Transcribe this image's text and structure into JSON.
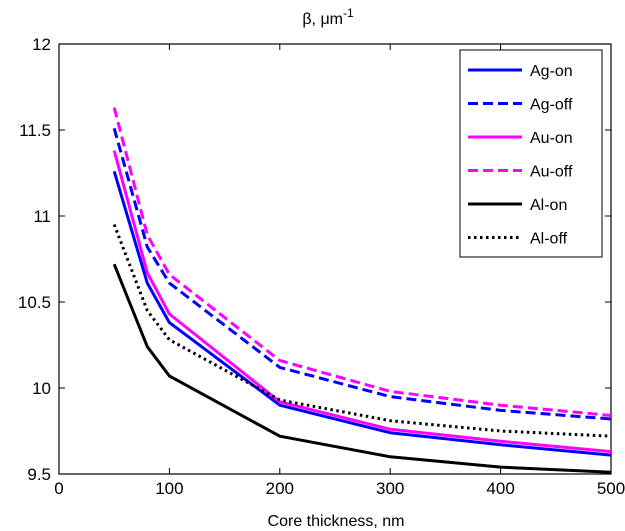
{
  "chart_data": {
    "type": "line",
    "title": "β, μm",
    "title_superscript": "-1",
    "xlabel": "Core thickness, nm",
    "ylabel": "",
    "xlim": [
      0,
      500
    ],
    "ylim": [
      9.5,
      12
    ],
    "xticks": [
      0,
      100,
      200,
      300,
      400,
      500
    ],
    "yticks": [
      9.5,
      10,
      10.5,
      11,
      11.5,
      12
    ],
    "xtick_labels": [
      "0",
      "100",
      "200",
      "300",
      "400",
      "500"
    ],
    "ytick_labels": [
      "9.5",
      "10",
      "10.5",
      "11",
      "11.5",
      "12"
    ],
    "grid": false,
    "legend_position": "top-right",
    "x": [
      50,
      80,
      100,
      200,
      300,
      400,
      500
    ],
    "series": [
      {
        "name": "Ag-on",
        "color": "#0000ff",
        "dash": "solid",
        "values": [
          11.26,
          10.61,
          10.38,
          9.9,
          9.74,
          9.67,
          9.61
        ]
      },
      {
        "name": "Ag-off",
        "color": "#0000ff",
        "dash": "dashed",
        "values": [
          11.51,
          10.82,
          10.61,
          10.12,
          9.95,
          9.87,
          9.82
        ]
      },
      {
        "name": "Au-on",
        "color": "#ff00ff",
        "dash": "solid",
        "values": [
          11.38,
          10.67,
          10.43,
          9.92,
          9.76,
          9.69,
          9.63
        ]
      },
      {
        "name": "Au-off",
        "color": "#ff00ff",
        "dash": "dashed",
        "values": [
          11.63,
          10.89,
          10.66,
          10.16,
          9.98,
          9.9,
          9.84
        ]
      },
      {
        "name": "Al-on",
        "color": "#000000",
        "dash": "solid",
        "values": [
          10.72,
          10.24,
          10.07,
          9.72,
          9.6,
          9.54,
          9.51
        ]
      },
      {
        "name": "Al-off",
        "color": "#000000",
        "dash": "dotted",
        "values": [
          10.95,
          10.45,
          10.28,
          9.93,
          9.81,
          9.75,
          9.72
        ]
      }
    ]
  }
}
